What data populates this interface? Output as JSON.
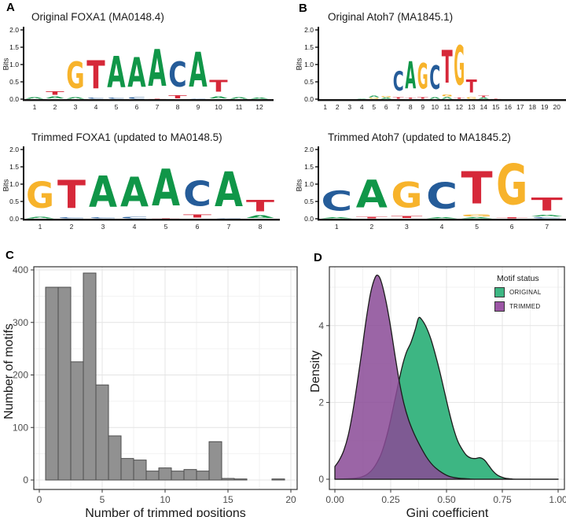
{
  "figure": {
    "panel_labels": {
      "a": "A",
      "b": "B",
      "c": "C",
      "d": "D"
    },
    "letter_colors": {
      "A": "#109648",
      "C": "#255C99",
      "G": "#F7B32B",
      "T": "#D62839"
    },
    "panel_border_color": "#333333",
    "grid_major_color": "#E4E4E4",
    "grid_minor_color": "#F2F2F2"
  },
  "chart_data": [
    {
      "id": "foxa1_original",
      "type": "sequence_logo",
      "title": "Original FOXA1 (MA0148.4)",
      "ylabel": "Bits",
      "ylim": [
        0,
        2
      ],
      "yticks": [
        "0.0",
        "0.5",
        "1.0",
        "1.5",
        "2.0"
      ],
      "xticks": [
        "1",
        "2",
        "3",
        "4",
        "5",
        "6",
        "7",
        "8",
        "9",
        "10",
        "11",
        "12"
      ],
      "stacks": [
        [
          [
            "A",
            0.06
          ]
        ],
        [
          [
            "A",
            0.09
          ],
          [
            "T",
            0.17
          ]
        ],
        [
          [
            "A",
            0.07
          ],
          [
            "G",
            1.22
          ]
        ],
        [
          [
            "C",
            0.04
          ],
          [
            "T",
            1.3
          ]
        ],
        [
          [
            "C",
            0.05
          ],
          [
            "A",
            1.45
          ]
        ],
        [
          [
            "C",
            0.07
          ],
          [
            "A",
            1.37
          ]
        ],
        [
          [
            "T",
            0.03
          ],
          [
            "A",
            1.71
          ]
        ],
        [
          [
            "T",
            0.13
          ],
          [
            "C",
            1.15
          ]
        ],
        [
          [
            "C",
            0.03
          ],
          [
            "A",
            1.62
          ]
        ],
        [
          [
            "A",
            0.1
          ],
          [
            "T",
            0.55
          ]
        ],
        [
          [
            "A",
            0.06
          ]
        ],
        [
          [
            "A",
            0.04
          ]
        ]
      ]
    },
    {
      "id": "foxa1_trimmed",
      "type": "sequence_logo",
      "title": "Trimmed FOXA1 (updated to MA0148.5)",
      "ylabel": "Bits",
      "ylim": [
        0,
        2
      ],
      "yticks": [
        "0.0",
        "0.5",
        "1.0",
        "1.5",
        "2.0"
      ],
      "xticks": [
        "1",
        "2",
        "3",
        "4",
        "5",
        "6",
        "7",
        "8"
      ],
      "stacks": [
        [
          [
            "A",
            0.07
          ],
          [
            "G",
            1.2
          ]
        ],
        [
          [
            "C",
            0.04
          ],
          [
            "T",
            1.3
          ]
        ],
        [
          [
            "C",
            0.05
          ],
          [
            "A",
            1.45
          ]
        ],
        [
          [
            "C",
            0.07
          ],
          [
            "A",
            1.37
          ]
        ],
        [
          [
            "T",
            0.03
          ],
          [
            "A",
            1.71
          ]
        ],
        [
          [
            "T",
            0.14
          ],
          [
            "C",
            1.15
          ]
        ],
        [
          [
            "C",
            0.03
          ],
          [
            "A",
            1.62
          ]
        ],
        [
          [
            "A",
            0.11
          ],
          [
            "T",
            0.53
          ]
        ]
      ]
    },
    {
      "id": "atoh7_original",
      "type": "sequence_logo",
      "title": "Original Atoh7 (MA1845.1)",
      "ylabel": "Bits",
      "ylim": [
        0,
        2
      ],
      "yticks": [
        "0.0",
        "0.5",
        "1.0",
        "1.5",
        "2.0"
      ],
      "xticks": [
        "1",
        "2",
        "3",
        "4",
        "5",
        "6",
        "7",
        "8",
        "9",
        "10",
        "11",
        "12",
        "13",
        "14",
        "15",
        "16",
        "17",
        "18",
        "19",
        "20"
      ],
      "stacks": [
        [],
        [],
        [],
        [
          [
            "A",
            0.03
          ]
        ],
        [
          [
            "G",
            0.04
          ],
          [
            "A",
            0.06
          ]
        ],
        [
          [
            "A",
            0.05
          ],
          [
            "G",
            0.04
          ]
        ],
        [
          [
            "T",
            0.06
          ],
          [
            "C",
            0.9
          ]
        ],
        [
          [
            "T",
            0.05
          ],
          [
            "A",
            1.25
          ]
        ],
        [
          [
            "T",
            0.07
          ],
          [
            "G",
            1.18
          ]
        ],
        [
          [
            "A",
            0.07
          ],
          [
            "C",
            1.1
          ]
        ],
        [
          [
            "A",
            0.06
          ],
          [
            "G",
            0.1
          ],
          [
            "T",
            1.52
          ]
        ],
        [
          [
            "T",
            0.04
          ],
          [
            "G",
            1.83
          ]
        ],
        [
          [
            "G",
            0.07
          ],
          [
            "T",
            0.58
          ]
        ],
        [
          [
            "A",
            0.04
          ],
          [
            "T",
            0.07
          ]
        ],
        [
          [
            "T",
            0.03
          ]
        ],
        [],
        [],
        [],
        [],
        []
      ]
    },
    {
      "id": "atoh7_trimmed",
      "type": "sequence_logo",
      "title": "Trimmed Atoh7 (updated to MA1845.2)",
      "ylabel": "Bits",
      "ylim": [
        0,
        2
      ],
      "yticks": [
        "0.0",
        "0.5",
        "1.0",
        "1.5",
        "2.0"
      ],
      "xticks": [
        "1",
        "2",
        "3",
        "4",
        "5",
        "6",
        "7"
      ],
      "stacks": [
        [
          [
            "A",
            0.05
          ],
          [
            "C",
            0.92
          ]
        ],
        [
          [
            "T",
            0.07
          ],
          [
            "A",
            1.28
          ]
        ],
        [
          [
            "T",
            0.09
          ],
          [
            "G",
            1.18
          ]
        ],
        [
          [
            "A",
            0.05
          ],
          [
            "C",
            1.2
          ]
        ],
        [
          [
            "A",
            0.05
          ],
          [
            "G",
            0.09
          ],
          [
            "T",
            1.5
          ]
        ],
        [
          [
            "T",
            0.04
          ],
          [
            "G",
            1.88
          ]
        ],
        [
          [
            "C",
            0.05
          ],
          [
            "A",
            0.07
          ],
          [
            "T",
            0.6
          ]
        ]
      ]
    },
    {
      "id": "trimmed_positions_histogram",
      "type": "bar",
      "xlabel": "Number of trimmed positions",
      "ylabel": "Number of motifs",
      "categories": [
        1,
        2,
        3,
        4,
        5,
        6,
        7,
        8,
        9,
        10,
        11,
        12,
        13,
        14,
        15,
        16,
        17,
        18,
        19,
        20
      ],
      "values": [
        367,
        367,
        225,
        394,
        181,
        84,
        41,
        38,
        17,
        23,
        17,
        20,
        17,
        73,
        3,
        2,
        0,
        0,
        2,
        0
      ],
      "xticks": [
        0,
        5,
        10,
        15,
        20
      ],
      "yticks": [
        0,
        100,
        200,
        300,
        400
      ],
      "xlim": [
        -0.5,
        20.5
      ],
      "ylim": [
        0,
        414
      ],
      "bar_fill": "#919191",
      "bar_stroke": "#4D4D4D"
    },
    {
      "id": "gini_density",
      "type": "area",
      "xlabel": "Gini coefficient",
      "ylabel": "Density",
      "xticks": [
        "0.00",
        "0.25",
        "0.50",
        "0.75",
        "1.00"
      ],
      "yticks": [
        0,
        2,
        4
      ],
      "xlim": [
        0,
        1
      ],
      "ylim": [
        0,
        5.5
      ],
      "legend": {
        "title": "Motif status",
        "entries": [
          {
            "label": "ORIGINAL",
            "color": "#3DB683"
          },
          {
            "label": "TRIMMED",
            "color": "#9C56A5"
          }
        ]
      },
      "series": [
        {
          "name": "ORIGINAL",
          "color": "#3DB683",
          "opacity": 1,
          "points": [
            [
              0.0,
              0.0
            ],
            [
              0.08,
              0.02
            ],
            [
              0.12,
              0.06
            ],
            [
              0.15,
              0.15
            ],
            [
              0.18,
              0.35
            ],
            [
              0.21,
              0.7
            ],
            [
              0.24,
              1.3
            ],
            [
              0.27,
              2.1
            ],
            [
              0.3,
              2.9
            ],
            [
              0.32,
              3.3
            ],
            [
              0.34,
              3.55
            ],
            [
              0.36,
              3.9
            ],
            [
              0.375,
              4.2
            ],
            [
              0.39,
              4.15
            ],
            [
              0.41,
              3.95
            ],
            [
              0.43,
              3.65
            ],
            [
              0.45,
              3.25
            ],
            [
              0.47,
              2.8
            ],
            [
              0.49,
              2.3
            ],
            [
              0.51,
              1.8
            ],
            [
              0.53,
              1.35
            ],
            [
              0.55,
              1.0
            ],
            [
              0.57,
              0.78
            ],
            [
              0.59,
              0.62
            ],
            [
              0.61,
              0.55
            ],
            [
              0.63,
              0.54
            ],
            [
              0.65,
              0.56
            ],
            [
              0.67,
              0.5
            ],
            [
              0.69,
              0.35
            ],
            [
              0.71,
              0.2
            ],
            [
              0.73,
              0.1
            ],
            [
              0.76,
              0.03
            ],
            [
              0.79,
              0.01
            ],
            [
              0.82,
              0.0
            ],
            [
              1.0,
              0.0
            ]
          ]
        },
        {
          "name": "TRIMMED",
          "color": "#8A4A97",
          "opacity": 0.85,
          "points": [
            [
              0.0,
              0.33
            ],
            [
              0.02,
              0.5
            ],
            [
              0.04,
              0.75
            ],
            [
              0.06,
              1.15
            ],
            [
              0.08,
              1.75
            ],
            [
              0.1,
              2.5
            ],
            [
              0.12,
              3.3
            ],
            [
              0.14,
              4.15
            ],
            [
              0.16,
              4.85
            ],
            [
              0.18,
              5.25
            ],
            [
              0.195,
              5.3
            ],
            [
              0.21,
              5.1
            ],
            [
              0.23,
              4.6
            ],
            [
              0.25,
              3.95
            ],
            [
              0.27,
              3.2
            ],
            [
              0.29,
              2.5
            ],
            [
              0.31,
              1.95
            ],
            [
              0.33,
              1.55
            ],
            [
              0.35,
              1.25
            ],
            [
              0.37,
              1.0
            ],
            [
              0.39,
              0.78
            ],
            [
              0.41,
              0.58
            ],
            [
              0.43,
              0.42
            ],
            [
              0.45,
              0.3
            ],
            [
              0.48,
              0.17
            ],
            [
              0.51,
              0.08
            ],
            [
              0.55,
              0.03
            ],
            [
              0.6,
              0.01
            ],
            [
              0.65,
              0.0
            ],
            [
              1.0,
              0.0
            ]
          ]
        }
      ]
    }
  ]
}
